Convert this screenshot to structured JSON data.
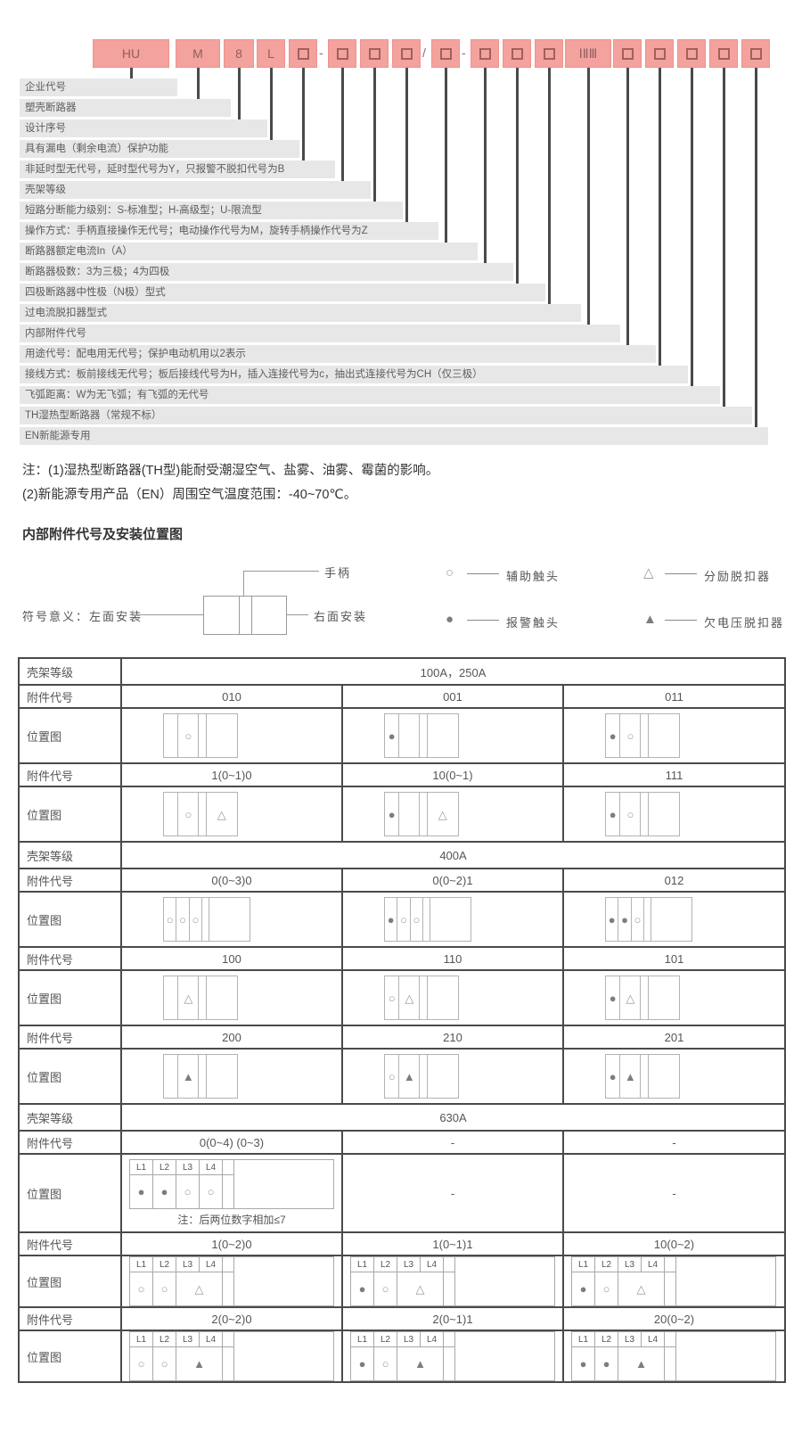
{
  "model_code": {
    "parts": [
      {
        "t": "HU"
      },
      {
        "t": "M"
      },
      {
        "t": "8"
      },
      {
        "t": "L"
      },
      {
        "t": "□"
      },
      {
        "sep": "-"
      },
      {
        "t": "□"
      },
      {
        "t": "□"
      },
      {
        "t": "□"
      },
      {
        "sep": "/"
      },
      {
        "t": "□"
      },
      {
        "sep": "-"
      },
      {
        "t": "□"
      },
      {
        "t": "□"
      },
      {
        "t": "□"
      },
      {
        "t": "ⅠⅡⅢ"
      },
      {
        "t": "□"
      },
      {
        "t": "□"
      },
      {
        "t": "□"
      },
      {
        "t": "□"
      },
      {
        "t": "□"
      }
    ],
    "descriptions": [
      "企业代号",
      "塑壳断路器",
      "设计序号",
      "具有漏电（剩余电流）保护功能",
      "非延时型无代号，延时型代号为Y，只报警不脱扣代号为B",
      "壳架等级",
      "短路分断能力级别：S-标准型；H-高级型；U-限流型",
      "操作方式：手柄直接操作无代号；电动操作代号为M，旋转手柄操作代号为Z",
      "断路器额定电流In（A）",
      "断路器极数：3为三极；4为四极",
      "四极断路器中性极（N极）型式",
      "过电流脱扣器型式",
      "内部附件代号",
      "用途代号：配电用无代号；保护电动机用以2表示",
      "接线方式：板前接线无代号；板后接线代号为H，插入连接代号为c，抽出式连接代号为CH（仅三极）",
      "飞弧距离：W为无飞弧；有飞弧的无代号",
      "TH湿热型断路器（常规不标）",
      "EN新能源专用"
    ]
  },
  "notes": {
    "line1": "注：(1)湿热型断路器(TH型)能耐受潮湿空气、盐雾、油雾、霉菌的影响。",
    "line2": "(2)新能源专用产品（EN）周围空气温度范围：-40~70℃。"
  },
  "section_title": "内部附件代号及安装位置图",
  "mount_diagram": {
    "handle_label": "手柄",
    "left_label": "符号意义：左面安装",
    "right_label": "右面安装"
  },
  "legend": [
    {
      "symbol": "○",
      "label": "辅助触头",
      "filled": false
    },
    {
      "symbol": "●",
      "label": "报警触头",
      "filled": true
    },
    {
      "symbol": "△",
      "label": "分励脱扣器",
      "filled": false
    },
    {
      "symbol": "▲",
      "label": "欠电压脱扣器",
      "filled": true
    }
  ],
  "table": {
    "labels": {
      "frame": "壳架等级",
      "code": "附件代号",
      "pos": "位置图"
    },
    "sections": [
      {
        "frame": "100A，250A",
        "rows": [
          {
            "style": "A",
            "codes": [
              "010",
              "001",
              "011"
            ],
            "diagrams": [
              [
                "",
                "○",
                "",
                ""
              ],
              [
                "●",
                "",
                "",
                ""
              ],
              [
                "●",
                "○",
                "",
                ""
              ]
            ]
          },
          {
            "style": "A",
            "codes": [
              "1(0~1)0",
              "10(0~1)",
              "111"
            ],
            "diagrams": [
              [
                "",
                "○",
                "",
                "△"
              ],
              [
                "●",
                "",
                "",
                "△"
              ],
              [
                "●",
                "○",
                "",
                ""
              ]
            ]
          }
        ]
      },
      {
        "frame": "400A",
        "rows": [
          {
            "style": "B",
            "codes": [
              "0(0~3)0",
              "0(0~2)1",
              "012"
            ],
            "diagrams": [
              [
                "○",
                "○",
                "○",
                "",
                ""
              ],
              [
                "●",
                "○",
                "○",
                "",
                ""
              ],
              [
                "●",
                "●",
                "○",
                "",
                ""
              ]
            ]
          },
          {
            "style": "A",
            "codes": [
              "100",
              "110",
              "101"
            ],
            "diagrams": [
              [
                "",
                "△",
                "",
                ""
              ],
              [
                "○",
                "△",
                "",
                ""
              ],
              [
                "●",
                "△",
                "",
                ""
              ]
            ]
          },
          {
            "style": "A",
            "codes": [
              "200",
              "210",
              "201"
            ],
            "diagrams": [
              [
                "",
                "▲",
                "",
                ""
              ],
              [
                "○",
                "▲",
                "",
                ""
              ],
              [
                "●",
                "▲",
                "",
                ""
              ]
            ]
          }
        ]
      },
      {
        "frame": "630A",
        "rows": [
          {
            "style": "L",
            "codes": [
              "0(0~4) (0~3)",
              "-",
              "-"
            ],
            "diagrams": [
              {
                "headers": [
                  "L1",
                  "L2",
                  "L3",
                  "L4"
                ],
                "cells": [
                  "●",
                  "●",
                  "○",
                  "○"
                ],
                "merged": false,
                "note": "注：后两位数字相加≤7"
              },
              null,
              null
            ]
          },
          {
            "style": "L",
            "codes": [
              "1(0~2)0",
              "1(0~1)1",
              "10(0~2)"
            ],
            "diagrams": [
              {
                "headers": [
                  "L1",
                  "L2",
                  "L3",
                  "L4"
                ],
                "cells": [
                  "○",
                  "○",
                  "△"
                ],
                "merged": true
              },
              {
                "headers": [
                  "L1",
                  "L2",
                  "L3",
                  "L4"
                ],
                "cells": [
                  "●",
                  "○",
                  "△"
                ],
                "merged": true
              },
              {
                "headers": [
                  "L1",
                  "L2",
                  "L3",
                  "L4"
                ],
                "cells": [
                  "●",
                  "○",
                  "△"
                ],
                "merged": true
              }
            ]
          },
          {
            "style": "L",
            "codes": [
              "2(0~2)0",
              "2(0~1)1",
              "20(0~2)"
            ],
            "diagrams": [
              {
                "headers": [
                  "L1",
                  "L2",
                  "L3",
                  "L4"
                ],
                "cells": [
                  "○",
                  "○",
                  "▲"
                ],
                "merged": true
              },
              {
                "headers": [
                  "L1",
                  "L2",
                  "L3",
                  "L4"
                ],
                "cells": [
                  "●",
                  "○",
                  "▲"
                ],
                "merged": true
              },
              {
                "headers": [
                  "L1",
                  "L2",
                  "L3",
                  "L4"
                ],
                "cells": [
                  "●",
                  "●",
                  "▲"
                ],
                "merged": true
              }
            ]
          }
        ]
      }
    ]
  }
}
